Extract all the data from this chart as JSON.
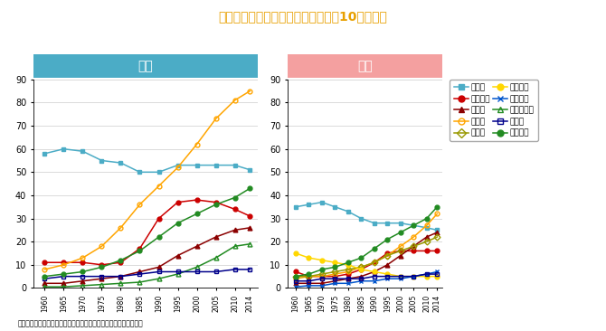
{
  "title": "主な部位別がん死亡率の推移（人口10万人対）",
  "title_color": "#E8A000",
  "source_text": "資料：国立がん研究センターがん情報サービス「がん登録・統計」",
  "years": [
    1960,
    1965,
    1970,
    1975,
    1980,
    1985,
    1990,
    1995,
    2000,
    2005,
    2010,
    2014
  ],
  "male_label": "男性",
  "female_label": "女性",
  "male_header_color": "#4BACC6",
  "female_header_color": "#F4A0A0",
  "male": {
    "胃がん": [
      58,
      60,
      59,
      55,
      54,
      50,
      50,
      53,
      53,
      53,
      53,
      51
    ],
    "肝臓がん": [
      11,
      11,
      11,
      10,
      11,
      17,
      30,
      37,
      38,
      37,
      34,
      31
    ],
    "膵がん": [
      2,
      2,
      3,
      4,
      5,
      7,
      9,
      14,
      18,
      22,
      25,
      26
    ],
    "肺がん": [
      8,
      10,
      13,
      18,
      26,
      36,
      44,
      52,
      62,
      73,
      81,
      85
    ],
    "前立腺がん": [
      0.5,
      0.5,
      1,
      1.5,
      2,
      2.5,
      4,
      6,
      9,
      13,
      18,
      19
    ],
    "白血病": [
      4,
      5,
      5,
      5,
      5,
      6,
      7,
      7,
      7,
      7,
      8,
      8
    ],
    "大腸がん": [
      5,
      6,
      7,
      9,
      12,
      16,
      22,
      28,
      32,
      36,
      39,
      43
    ]
  },
  "female": {
    "胃がん": [
      35,
      36,
      37,
      35,
      33,
      30,
      28,
      28,
      28,
      27,
      26,
      25
    ],
    "肝臓がん": [
      7,
      5,
      5,
      5,
      6,
      8,
      11,
      15,
      16,
      16,
      16,
      16
    ],
    "膵がん": [
      2,
      2,
      2,
      3,
      4,
      5,
      7,
      10,
      14,
      18,
      22,
      24
    ],
    "肺がん": [
      4,
      5,
      5,
      6,
      7,
      9,
      11,
      14,
      18,
      22,
      27,
      32
    ],
    "乳がん": [
      5,
      5,
      6,
      7,
      8,
      9,
      11,
      14,
      16,
      18,
      20,
      22
    ],
    "子宮がん": [
      15,
      13,
      12,
      11,
      10,
      8,
      7,
      6,
      5,
      5,
      5,
      5
    ],
    "卵巣がん": [
      0.5,
      1,
      1,
      2,
      2,
      3,
      3,
      4,
      4,
      5,
      6,
      7
    ],
    "白血病": [
      3,
      3,
      4,
      4,
      4,
      4,
      5,
      5,
      5,
      5,
      6,
      6
    ],
    "大腸がん": [
      5,
      6,
      8,
      9,
      11,
      13,
      17,
      21,
      24,
      27,
      30,
      35
    ]
  },
  "series_styles": {
    "胃がん": {
      "color": "#4BACC6",
      "marker": "s",
      "fillstyle": "full"
    },
    "肝臓がん": {
      "color": "#CC0000",
      "marker": "o",
      "fillstyle": "full"
    },
    "膵がん": {
      "color": "#8B0000",
      "marker": "^",
      "fillstyle": "full"
    },
    "肺がん": {
      "color": "#FFA500",
      "marker": "o",
      "fillstyle": "none"
    },
    "乳がん": {
      "color": "#999900",
      "marker": "D",
      "fillstyle": "none"
    },
    "子宮がん": {
      "color": "#FFD700",
      "marker": "o",
      "fillstyle": "full"
    },
    "卵巣がん": {
      "color": "#0055CC",
      "marker": "x",
      "fillstyle": "full"
    },
    "前立腺がん": {
      "color": "#228B22",
      "marker": "^",
      "fillstyle": "none"
    },
    "白血病": {
      "color": "#00008B",
      "marker": "s",
      "fillstyle": "none"
    },
    "大腸がん": {
      "color": "#228B22",
      "marker": "o",
      "fillstyle": "full"
    }
  },
  "male_series": [
    "胃がん",
    "肝臓がん",
    "膵がん",
    "肺がん",
    "前立腺がん",
    "白血病",
    "大腸がん"
  ],
  "female_series": [
    "胃がん",
    "肝臓がん",
    "膵がん",
    "肺がん",
    "乳がん",
    "子宮がん",
    "卵巣がん",
    "白血病",
    "大腸がん"
  ],
  "legend_series": [
    "胃がん",
    "肝臓がん",
    "膵がん",
    "肺がん",
    "乳がん",
    "子宮がん",
    "卵巣がん",
    "前立腺がん",
    "白血病",
    "大腸がん"
  ],
  "ylim": [
    0,
    90
  ],
  "yticks": [
    0,
    10,
    20,
    30,
    40,
    50,
    60,
    70,
    80,
    90
  ]
}
